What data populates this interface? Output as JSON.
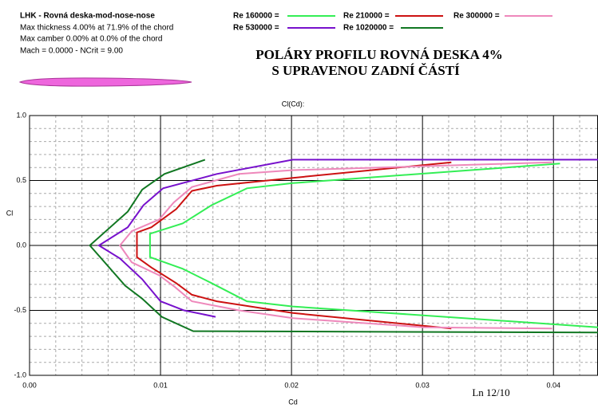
{
  "chart_data": {
    "type": "line",
    "info": [
      "LHK - Rovná deska-mod-nose-nose",
      "Max thickness 4.00% at 71.9% of the chord",
      "Max camber 0.00% at 0.0% of the chord",
      "Mach = 0.0000 - NCrit = 9.00"
    ],
    "title": "POLÁRY  PROFILU  ROVNÁ  DESKA  4%",
    "subtitle": "S  UPRAVENOU ZADNÍ  ČÁSTÍ",
    "plot_title": "Cl(Cd):",
    "ylabel": "Cl",
    "xlabel": "Cd",
    "annotation": "Ln 12/10",
    "xlim": [
      0,
      0.0434
    ],
    "ylim": [
      -1.0,
      1.0
    ],
    "xticks": [
      {
        "value": 0,
        "label": "0.00"
      },
      0.01,
      0.02,
      0.03,
      0.04
    ],
    "yticks": [
      {
        "value": -1,
        "label": "-1.0"
      },
      -0.5,
      {
        "value": 0,
        "label": "0.0"
      },
      0.5,
      {
        "value": 1,
        "label": "1.0"
      }
    ],
    "xminor": [
      0.002,
      0.004,
      0.006,
      0.008,
      0.012,
      0.014,
      0.016,
      0.018,
      0.022,
      0.024,
      0.026,
      0.028,
      0.032,
      0.034,
      0.036,
      0.038,
      0.042
    ],
    "yminor": [
      -0.9,
      -0.8,
      -0.7,
      -0.6,
      -0.4,
      -0.3,
      -0.2,
      -0.1,
      0.1,
      0.2,
      0.3,
      0.4,
      0.6,
      0.7,
      0.8,
      0.9
    ],
    "grid": true,
    "series": [
      {
        "name": "Re 160000 =",
        "color": "#33ee55",
        "x": [
          0.0405,
          0.0201,
          0.0166,
          0.0139,
          0.0117,
          0.0092,
          0.0092,
          0.0117,
          0.0139,
          0.0166,
          0.0201,
          0.0434
        ],
        "values": [
          0.63,
          0.48,
          0.44,
          0.31,
          0.17,
          0.09,
          -0.09,
          -0.18,
          -0.29,
          -0.43,
          -0.47,
          -0.63
        ]
      },
      {
        "name": "Re 210000 =",
        "color": "#cc1111",
        "x": [
          0.0322,
          0.0201,
          0.0143,
          0.0124,
          0.0112,
          0.0093,
          0.0082,
          0.0082,
          0.0093,
          0.0112,
          0.0124,
          0.0143,
          0.0201,
          0.0322
        ],
        "values": [
          0.64,
          0.52,
          0.46,
          0.42,
          0.28,
          0.14,
          0.1,
          -0.09,
          -0.17,
          -0.29,
          -0.38,
          -0.43,
          -0.52,
          -0.64
        ]
      },
      {
        "name": "Re 300000 =",
        "color": "#ee88bb",
        "x": [
          0.0399,
          0.0201,
          0.016,
          0.0124,
          0.011,
          0.0099,
          0.0078,
          0.0069,
          0.0078,
          0.0099,
          0.0111,
          0.0124,
          0.016,
          0.0201,
          0.0301,
          0.0399
        ],
        "values": [
          0.64,
          0.58,
          0.55,
          0.45,
          0.33,
          0.2,
          0.11,
          0,
          -0.13,
          -0.23,
          -0.32,
          -0.43,
          -0.5,
          -0.56,
          -0.63,
          -0.64
        ]
      },
      {
        "name": "Re 530000 =",
        "color": "#7711cc",
        "x": [
          0.0434,
          0.0201,
          0.0143,
          0.0102,
          0.0087,
          0.0075,
          0.0053,
          0.0069,
          0.0086,
          0.01,
          0.0118,
          0.0142
        ],
        "values": [
          0.66,
          0.66,
          0.55,
          0.44,
          0.31,
          0.14,
          0,
          -0.1,
          -0.26,
          -0.43,
          -0.5,
          -0.55
        ]
      },
      {
        "name": "Re 1020000 =",
        "color": "#117722",
        "x": [
          0.0134,
          0.0103,
          0.0086,
          0.0075,
          0.0046,
          0.0073,
          0.0086,
          0.0101,
          0.0125,
          0.0434
        ],
        "values": [
          0.66,
          0.55,
          0.43,
          0.26,
          0,
          -0.31,
          -0.41,
          -0.55,
          -0.66,
          -0.67
        ]
      }
    ]
  }
}
